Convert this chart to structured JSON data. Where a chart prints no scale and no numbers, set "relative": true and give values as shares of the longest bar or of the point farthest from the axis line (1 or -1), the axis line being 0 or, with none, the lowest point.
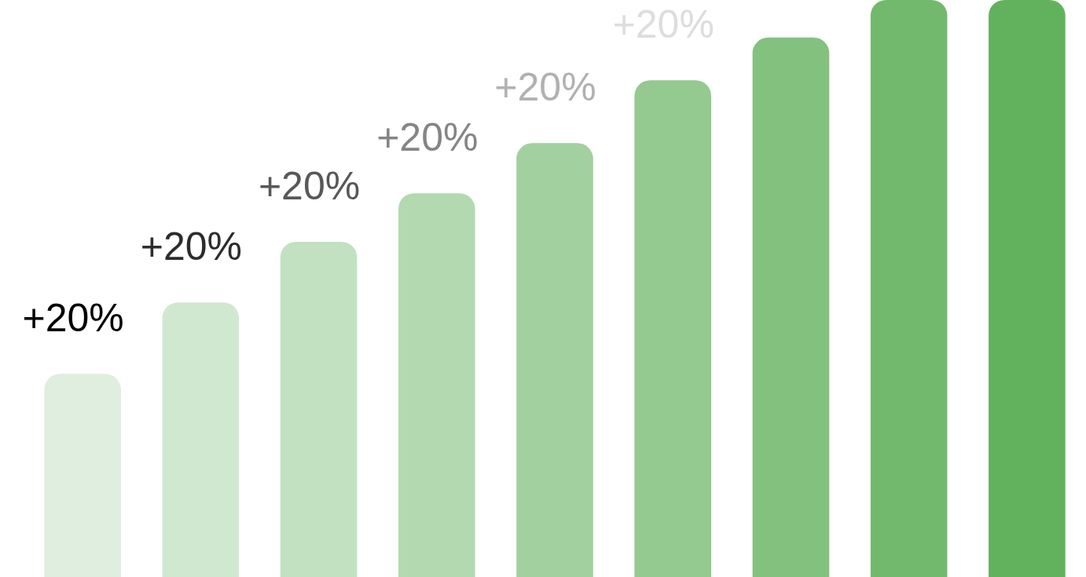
{
  "chart_data": {
    "type": "bar",
    "relative": true,
    "categories": [
      null,
      null,
      null,
      null,
      null,
      null,
      null,
      null,
      null
    ],
    "values": [
      0.352,
      0.476,
      0.581,
      0.665,
      0.752,
      0.861,
      0.935,
      1,
      1
    ],
    "colors": [
      "#dfeedf",
      "#d0e8d0",
      "#c1e1c0",
      "#b2d9b0",
      "#a3d09f",
      "#94c98f",
      "#83c17e",
      "#72b96d",
      "#62b25d"
    ],
    "annotations": [
      "+20%",
      "+20%",
      "+20%",
      "+20%",
      "+20%",
      "+20%"
    ]
  }
}
